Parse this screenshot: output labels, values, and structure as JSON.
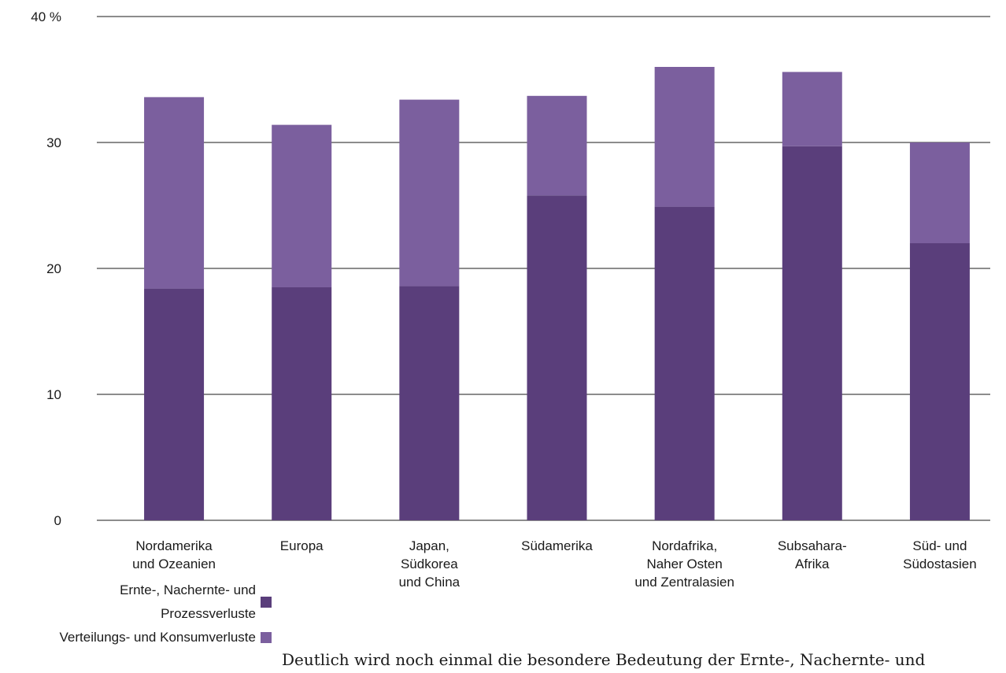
{
  "chart_data": {
    "type": "bar",
    "stacked": true,
    "categories": [
      "Nordamerika\nund Ozeanien",
      "Europa",
      "Japan,\nSüdkorea\nund China",
      "Südamerika",
      "Nordafrika,\nNaher Osten\nund Zentralasien",
      "Subsahara-\nAfrika",
      "Süd- und\nSüdostasien"
    ],
    "series": [
      {
        "name": "Ernte-, Nachernte- und Prozessverluste",
        "color": "#5a3e7b",
        "values": [
          18.4,
          18.5,
          18.6,
          25.8,
          24.9,
          29.7,
          22.0
        ]
      },
      {
        "name": "Verteilungs- und Konsumverluste",
        "color": "#7b5f9e",
        "values": [
          15.2,
          12.9,
          14.8,
          7.9,
          11.1,
          5.9,
          8.0
        ]
      }
    ],
    "yticks": [
      "0",
      "10",
      "20",
      "30",
      "40 %"
    ],
    "ylim": [
      0,
      40
    ],
    "grid": true,
    "legend_position": "bottom-left"
  },
  "legend": {
    "items": [
      {
        "label": "Ernte-, Nachernte- und\nProzessverluste",
        "color": "#5a3e7b"
      },
      {
        "label": "Verteilungs- und Konsumverluste",
        "color": "#7b5f9e"
      }
    ]
  },
  "body_text": "Deutlich wird noch einmal die besondere Bedeutung der Ernte-, Nachernte- und"
}
